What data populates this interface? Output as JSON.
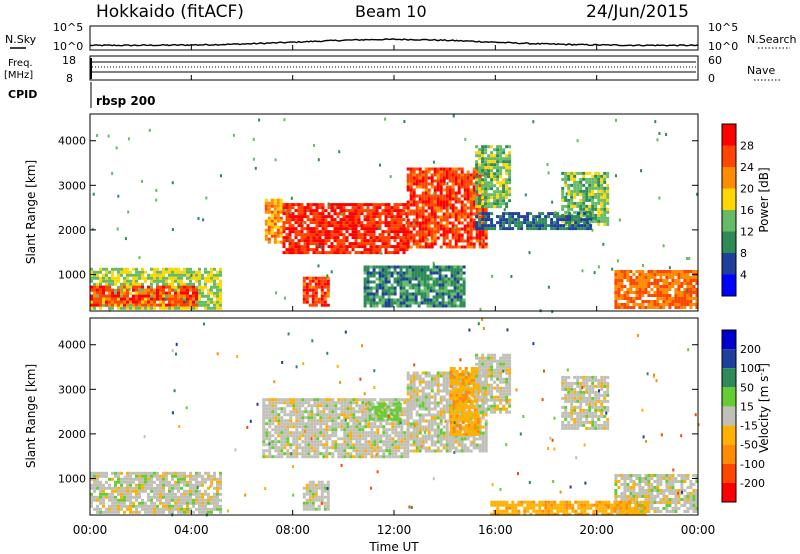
{
  "header": {
    "station": "Hokkaido (fitACF)",
    "beam": "Beam 10",
    "date": "24/Jun/2015"
  },
  "noise_panel": {
    "left_label": "N.Sky",
    "right_label": "N.Search",
    "left_ticks": [
      "10^5",
      "10^0"
    ],
    "right_ticks": [
      "10^5",
      "10^0"
    ]
  },
  "freq_panel": {
    "left_label_1": "Freq.",
    "left_label_2": "[MHz]",
    "right_label": "Nave",
    "left_ticks": [
      "18",
      "8"
    ],
    "right_ticks": [
      "60",
      "0"
    ]
  },
  "cpid": {
    "label": "CPID",
    "program": "rbsp 200"
  },
  "colors": {
    "power_scale": [
      "#0000ff",
      "#1f3f9f",
      "#2e8b57",
      "#66bb66",
      "#ffd700",
      "#ff8c00",
      "#ff4500",
      "#ff0000"
    ],
    "velocity_scale": [
      "#ff0000",
      "#ff4500",
      "#ff8c00",
      "#ffb000",
      "#c8c8c0",
      "#66cc33",
      "#2e8b57",
      "#1f3f9f",
      "#0000cc"
    ],
    "ground_scatter": "#c0c0b8"
  },
  "chart_data": [
    {
      "type": "heatmap",
      "name": "power",
      "ylabel": "Slant Range [km]",
      "xlim_hours": [
        0,
        24
      ],
      "ylim_km": [
        180,
        4600
      ],
      "yticks": [
        1000,
        2000,
        3000,
        4000
      ],
      "colorbar": {
        "label": "Power [dB]",
        "ticks": [
          4,
          8,
          12,
          16,
          20,
          24,
          28
        ],
        "range": [
          0,
          32
        ]
      },
      "regions": [
        {
          "t0": 0.0,
          "t1": 5.2,
          "r0": 250,
          "r1": 1150,
          "level": 16
        },
        {
          "t0": 0.0,
          "t1": 4.2,
          "r0": 300,
          "r1": 750,
          "level": 26
        },
        {
          "t0": 6.9,
          "t1": 7.6,
          "r0": 1700,
          "r1": 2700,
          "level": 22
        },
        {
          "t0": 7.6,
          "t1": 12.5,
          "r0": 1500,
          "r1": 2600,
          "level": 28
        },
        {
          "t0": 12.5,
          "t1": 15.6,
          "r0": 1600,
          "r1": 3400,
          "level": 27
        },
        {
          "t0": 15.2,
          "t1": 16.6,
          "r0": 2500,
          "r1": 3900,
          "level": 14
        },
        {
          "t0": 8.4,
          "t1": 9.4,
          "r0": 300,
          "r1": 950,
          "level": 27
        },
        {
          "t0": 18.6,
          "t1": 20.4,
          "r0": 2100,
          "r1": 3300,
          "level": 14
        },
        {
          "t0": 20.7,
          "t1": 24.0,
          "r0": 250,
          "r1": 1100,
          "level": 24
        },
        {
          "t0": 15.2,
          "t1": 19.8,
          "r0": 2000,
          "r1": 2400,
          "level": 8
        },
        {
          "t0": 10.8,
          "t1": 14.8,
          "r0": 300,
          "r1": 1200,
          "level": 10
        }
      ]
    },
    {
      "type": "heatmap",
      "name": "velocity",
      "ylabel": "Slant Range [km]",
      "xlabel": "Time UT",
      "xticks": [
        "00:00",
        "04:00",
        "08:00",
        "12:00",
        "16:00",
        "20:00",
        "00:00"
      ],
      "xlim_hours": [
        0,
        24
      ],
      "ylim_km": [
        180,
        4600
      ],
      "yticks": [
        1000,
        2000,
        3000,
        4000
      ],
      "colorbar": {
        "label": "Velocity [m s^-1]",
        "ticks": [
          200,
          100,
          50,
          15,
          -15,
          -50,
          -100,
          -200
        ]
      },
      "regions": [
        {
          "t0": 0.0,
          "t1": 5.2,
          "r0": 250,
          "r1": 1150,
          "velocity": 0
        },
        {
          "t0": 6.8,
          "t1": 12.5,
          "r0": 1500,
          "r1": 2800,
          "velocity": 0
        },
        {
          "t0": 12.5,
          "t1": 15.6,
          "r0": 1600,
          "r1": 3400,
          "velocity": 0
        },
        {
          "t0": 14.2,
          "t1": 15.3,
          "r0": 2000,
          "r1": 3500,
          "velocity": -40
        },
        {
          "t0": 15.2,
          "t1": 16.6,
          "r0": 2500,
          "r1": 3800,
          "velocity": 0
        },
        {
          "t0": 18.6,
          "t1": 20.4,
          "r0": 2100,
          "r1": 3300,
          "velocity": 0
        },
        {
          "t0": 20.7,
          "t1": 24.0,
          "r0": 250,
          "r1": 1100,
          "velocity": 0
        },
        {
          "t0": 8.4,
          "t1": 9.4,
          "r0": 300,
          "r1": 950,
          "velocity": 0
        },
        {
          "t0": 15.8,
          "t1": 22.0,
          "r0": 220,
          "r1": 500,
          "velocity": -40
        },
        {
          "t0": 11.0,
          "t1": 12.2,
          "r0": 2300,
          "r1": 2700,
          "velocity": 30
        }
      ]
    }
  ]
}
